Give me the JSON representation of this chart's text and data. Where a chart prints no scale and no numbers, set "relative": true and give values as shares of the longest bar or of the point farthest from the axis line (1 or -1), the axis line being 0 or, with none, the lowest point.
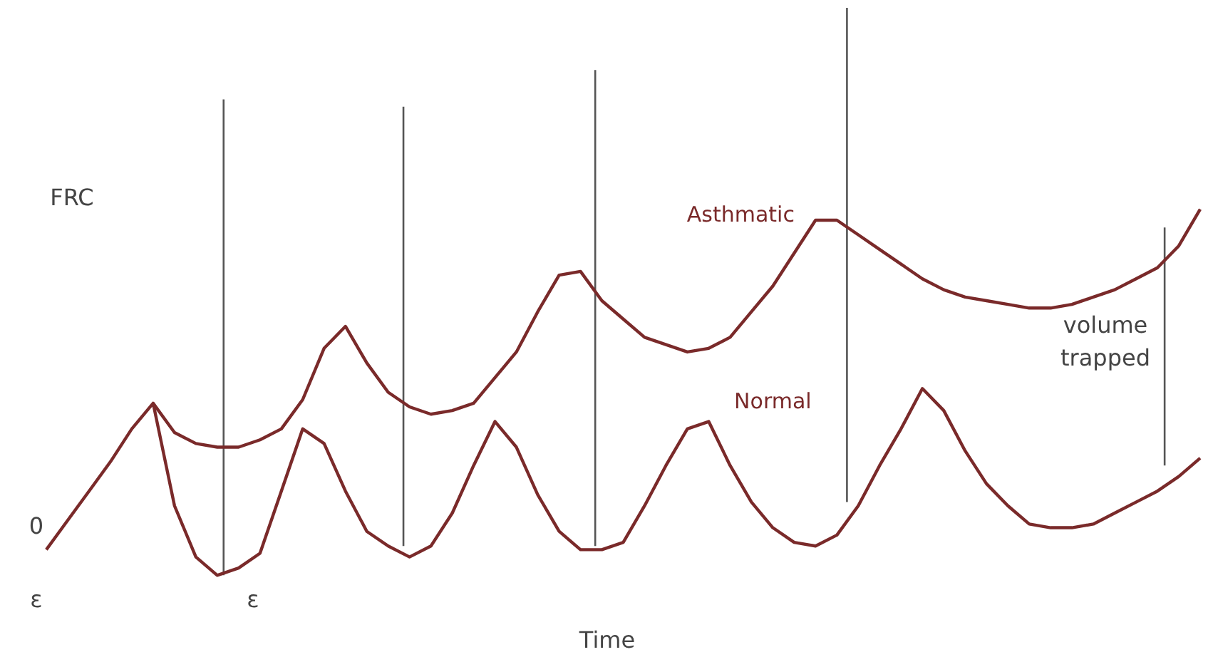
{
  "chart_data": {
    "type": "line",
    "relative": true,
    "xlabel": "Time",
    "grid": false,
    "marker": "none",
    "line_style": "solid",
    "categories": [
      null,
      null,
      null,
      null,
      null,
      null,
      null,
      null,
      null,
      null,
      null,
      null,
      null,
      null,
      null,
      null,
      null,
      null,
      null,
      null,
      null,
      null,
      null,
      null,
      null,
      null,
      null,
      null,
      null,
      null,
      null,
      null,
      null,
      null,
      null,
      null,
      null,
      null,
      null,
      null,
      null,
      null,
      null,
      null,
      null,
      null,
      null,
      null,
      null,
      null,
      null,
      null,
      null,
      null,
      null
    ],
    "series": [
      {
        "name": "Asthmatic",
        "color": "#7a2a2a",
        "values": [
          null,
          null,
          null,
          null,
          null,
          0.47,
          0.39,
          0.36,
          0.35,
          0.35,
          0.37,
          0.4,
          0.48,
          0.62,
          0.68,
          0.58,
          0.5,
          0.46,
          0.44,
          0.45,
          0.47,
          0.54,
          0.61,
          0.72,
          0.82,
          0.83,
          0.75,
          0.7,
          0.65,
          0.63,
          0.61,
          0.62,
          0.65,
          0.72,
          0.79,
          0.88,
          0.97,
          0.97,
          0.93,
          0.89,
          0.85,
          0.81,
          0.78,
          0.76,
          0.75,
          0.74,
          0.73,
          0.73,
          0.74,
          0.76,
          0.78,
          0.81,
          0.84,
          0.9,
          1
        ]
      },
      {
        "name": "Normal",
        "color": "#7a2a2a",
        "values": [
          0.07,
          0.15,
          0.23,
          0.31,
          0.4,
          0.47,
          0.19,
          0.05,
          0,
          0.02,
          0.06,
          0.23,
          0.4,
          0.36,
          0.23,
          0.12,
          0.08,
          0.05,
          0.08,
          0.17,
          0.3,
          0.42,
          0.35,
          0.22,
          0.12,
          0.07,
          0.07,
          0.09,
          0.19,
          0.3,
          0.4,
          0.42,
          0.3,
          0.2,
          0.13,
          0.09,
          0.08,
          0.11,
          0.19,
          0.3,
          0.4,
          0.51,
          0.45,
          0.34,
          0.25,
          0.19,
          0.14,
          0.13,
          0.13,
          0.14,
          0.17,
          0.2,
          0.23,
          0.27,
          0.32
        ]
      }
    ],
    "annotations": [
      "FRC",
      "0",
      "ε",
      "ε",
      "volume\ntrapped"
    ]
  }
}
